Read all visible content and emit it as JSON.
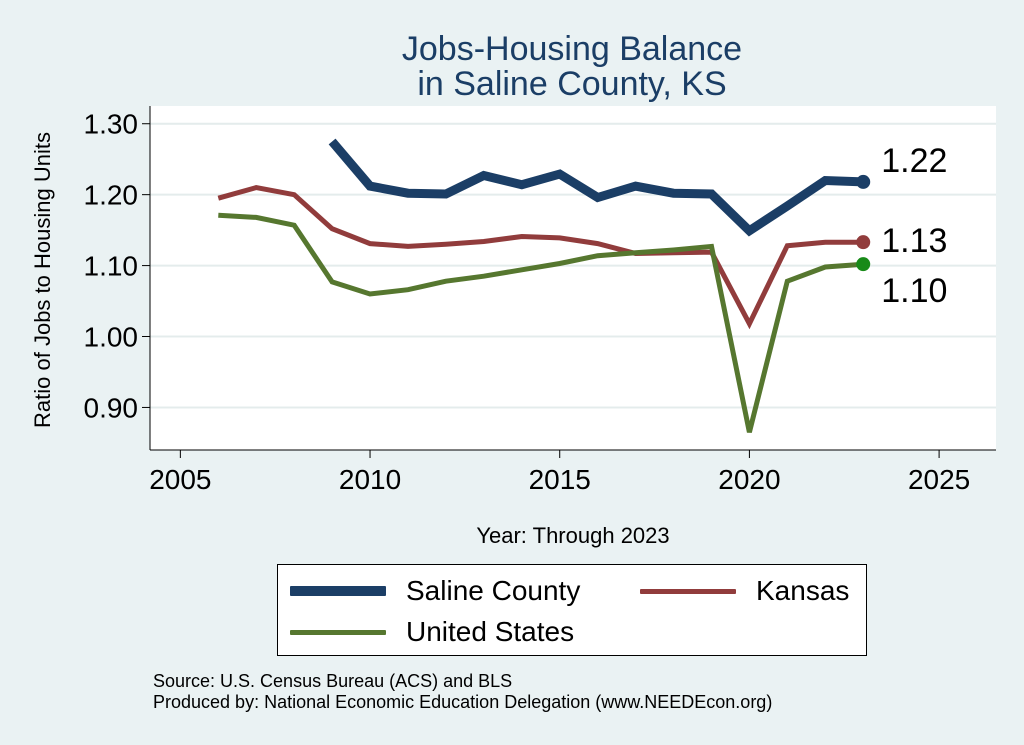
{
  "chart_data": {
    "type": "line",
    "title": [
      "Jobs-Housing Balance",
      "in Saline County, KS"
    ],
    "xlabel": "Year: Through 2023",
    "ylabel": "Ratio of Jobs to Housing Units",
    "xlim": [
      2004.2,
      2026.5
    ],
    "ylim": [
      0.84,
      1.325
    ],
    "xticks": [
      2005,
      2010,
      2015,
      2020,
      2025
    ],
    "yticks": [
      0.9,
      1.0,
      1.1,
      1.2,
      1.3
    ],
    "ytick_labels": [
      "0.90",
      "1.00",
      "1.10",
      "1.20",
      "1.30"
    ],
    "grid": true,
    "legend_position": "bottom",
    "series": [
      {
        "name": "Saline County",
        "color": "#1b3e66",
        "x": [
          2009,
          2010,
          2011,
          2012,
          2013,
          2014,
          2015,
          2016,
          2017,
          2018,
          2019,
          2020,
          2021,
          2022,
          2023
        ],
        "y": [
          1.275,
          1.212,
          1.202,
          1.201,
          1.227,
          1.214,
          1.229,
          1.196,
          1.212,
          1.202,
          1.201,
          1.149,
          1.184,
          1.22,
          1.218
        ],
        "end_label": "1.22"
      },
      {
        "name": "Kansas",
        "color": "#913c3c",
        "x": [
          2006,
          2007,
          2008,
          2009,
          2010,
          2011,
          2012,
          2013,
          2014,
          2015,
          2016,
          2017,
          2018,
          2019,
          2020,
          2021,
          2022,
          2023
        ],
        "y": [
          1.195,
          1.21,
          1.2,
          1.152,
          1.131,
          1.127,
          1.13,
          1.134,
          1.141,
          1.139,
          1.131,
          1.117,
          1.118,
          1.119,
          1.018,
          1.128,
          1.133,
          1.133
        ],
        "end_label": "1.13"
      },
      {
        "name": "United States",
        "color": "#56772f",
        "x": [
          2006,
          2007,
          2008,
          2009,
          2010,
          2011,
          2012,
          2013,
          2014,
          2015,
          2016,
          2017,
          2018,
          2019,
          2020,
          2021,
          2022,
          2023
        ],
        "y": [
          1.171,
          1.168,
          1.157,
          1.077,
          1.06,
          1.066,
          1.078,
          1.085,
          1.094,
          1.103,
          1.114,
          1.118,
          1.122,
          1.127,
          0.865,
          1.078,
          1.098,
          1.102
        ],
        "end_label": "1.10",
        "end_color": "#188a18"
      }
    ]
  },
  "legend": [
    {
      "name": "Saline County",
      "color": "#1b3e66"
    },
    {
      "name": "Kansas",
      "color": "#913c3c"
    },
    {
      "name": "United States",
      "color": "#56772f"
    }
  ],
  "source": {
    "line1": "Source: U.S. Census Bureau (ACS) and BLS",
    "line2": "Produced by: National Economic Education Delegation (www.NEEDEcon.org)"
  }
}
